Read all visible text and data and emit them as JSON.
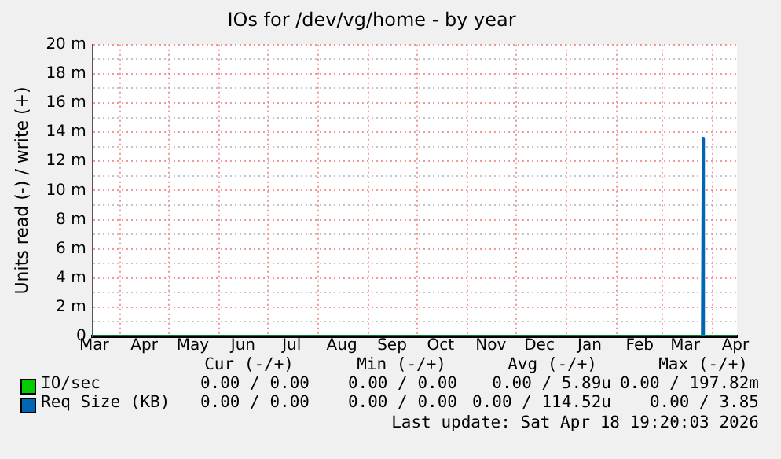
{
  "chart_data": {
    "type": "line",
    "title": "IOs for /dev/vg/home - by year",
    "ylabel": "Units read (-) / write (+)",
    "xlim": [
      "2025-03-15",
      "2026-04-17"
    ],
    "xticks": [
      {
        "value": "2025-03-16",
        "label": "Mar"
      },
      {
        "value": "2025-04-01",
        "label": null
      },
      {
        "value": "2025-04-16",
        "label": "Apr"
      },
      {
        "value": "2025-05-01",
        "label": null
      },
      {
        "value": "2025-05-16",
        "label": "May"
      },
      {
        "value": "2025-06-01",
        "label": null
      },
      {
        "value": "2025-06-16",
        "label": "Jun"
      },
      {
        "value": "2025-07-01",
        "label": null
      },
      {
        "value": "2025-07-16",
        "label": "Jul"
      },
      {
        "value": "2025-08-01",
        "label": null
      },
      {
        "value": "2025-08-16",
        "label": "Aug"
      },
      {
        "value": "2025-09-01",
        "label": null
      },
      {
        "value": "2025-09-16",
        "label": "Sep"
      },
      {
        "value": "2025-10-01",
        "label": null
      },
      {
        "value": "2025-10-16",
        "label": "Oct"
      },
      {
        "value": "2025-11-01",
        "label": null
      },
      {
        "value": "2025-11-16",
        "label": "Nov"
      },
      {
        "value": "2025-12-01",
        "label": null
      },
      {
        "value": "2025-12-16",
        "label": "Dec"
      },
      {
        "value": "2026-01-01",
        "label": null
      },
      {
        "value": "2026-01-16",
        "label": "Jan"
      },
      {
        "value": "2026-02-01",
        "label": null
      },
      {
        "value": "2026-02-16",
        "label": "Feb"
      },
      {
        "value": "2026-03-01",
        "label": null
      },
      {
        "value": "2026-03-16",
        "label": "Mar"
      },
      {
        "value": "2026-04-01",
        "label": null
      },
      {
        "value": "2026-04-16",
        "label": "Apr"
      }
    ],
    "ylim": [
      0,
      20
    ],
    "yticks": [
      0,
      {
        "value": 1,
        "label": null
      },
      {
        "value": 2,
        "label": "2 m"
      },
      {
        "value": 3,
        "label": null
      },
      {
        "value": 4,
        "label": "4 m"
      },
      {
        "value": 5,
        "label": null
      },
      {
        "value": 6,
        "label": "6 m"
      },
      {
        "value": 7,
        "label": null
      },
      {
        "value": 8,
        "label": "8 m"
      },
      {
        "value": 9,
        "label": null
      },
      {
        "value": 10,
        "label": "10 m"
      },
      {
        "value": 11,
        "label": null
      },
      {
        "value": 12,
        "label": "12 m"
      },
      {
        "value": 13,
        "label": null
      },
      {
        "value": 14,
        "label": "14 m"
      },
      {
        "value": 15,
        "label": null
      },
      {
        "value": 16,
        "label": "16 m"
      },
      {
        "value": 17,
        "label": null
      },
      {
        "value": 18,
        "label": "18 m"
      },
      {
        "value": 19,
        "label": null
      },
      {
        "value": 20,
        "label": "20 m"
      }
    ],
    "grid": true,
    "legend": "bottom left",
    "series": [
      {
        "name": "IO/sec",
        "color": "#00cc00",
        "x": [
          "2025-03-15",
          "2026-04-17"
        ],
        "values": [
          0,
          0
        ]
      },
      {
        "name": "Req Size (KB)",
        "color": "#0066b3",
        "x": [
          "2025-03-15",
          "2026-03-26T12:00",
          "2026-03-27",
          "2026-03-27T12:00",
          "2026-04-17"
        ],
        "values": [
          0,
          0,
          13.6,
          0,
          0
        ]
      }
    ],
    "annotations": [
      "Cur (-/+)",
      "Min (-/+)",
      "Avg (-/+)",
      "Max (-/+)",
      "0.00 / 0.00",
      "0.00 / 0.00",
      "0.00 / 5.89u",
      "0.00 / 197.82m",
      "0.00 / 0.00",
      "0.00 / 0.00",
      "0.00 / 114.52u",
      "0.00 / 3.85",
      "Last update: Sat Apr 18 19:20:03 2026"
    ]
  }
}
